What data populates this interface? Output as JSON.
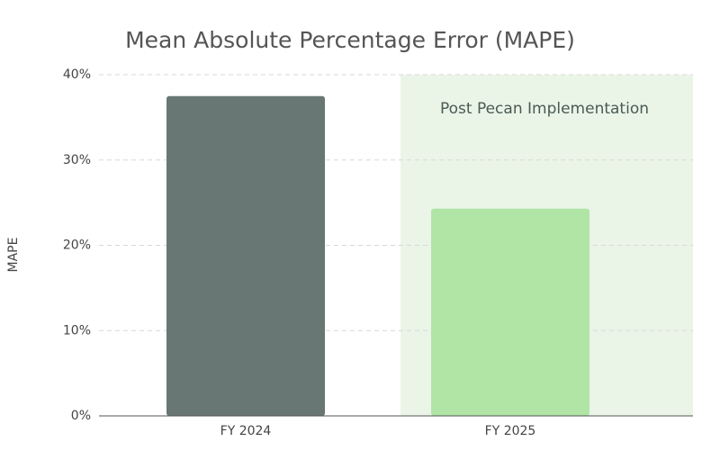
{
  "chart_data": {
    "type": "bar",
    "title": "Mean Absolute Percentage Error (MAPE)",
    "y_label": "MAPE",
    "categories": [
      "FY 2024",
      "FY 2025"
    ],
    "values": [
      37.5,
      24.3
    ],
    "colors": [
      "#687773",
      "#b0e5a6"
    ],
    "annotation": "Post Pecan Implementation",
    "highlight": "FY 2025",
    "highlight_color": "#eaf5e8",
    "ylim": [
      0,
      40
    ],
    "yticks": [
      {
        "value": 0,
        "label": "0%"
      },
      {
        "value": 10,
        "label": "10%"
      },
      {
        "value": 20,
        "label": "20%"
      },
      {
        "value": 30,
        "label": "30%"
      },
      {
        "value": 40,
        "label": "40%"
      }
    ],
    "grid": true
  }
}
